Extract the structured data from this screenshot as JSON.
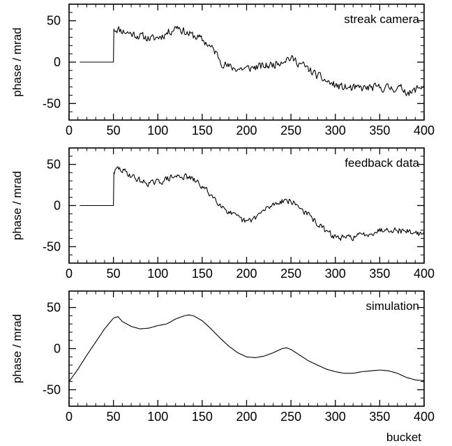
{
  "chart_data": [
    {
      "type": "line",
      "title": "streak camera",
      "xlabel": "",
      "ylabel": "phase / mrad",
      "xlim": [
        0,
        400
      ],
      "ylim": [
        -70,
        70
      ],
      "xticks": [
        0,
        50,
        100,
        150,
        200,
        250,
        300,
        350,
        400
      ],
      "yticks": [
        -50,
        0,
        50
      ],
      "noise": 4.5,
      "seed": 11,
      "series": [
        {
          "x": [
            12,
            50,
            50.5,
            55,
            65,
            75,
            85,
            95,
            105,
            115,
            122,
            128,
            135,
            145,
            155,
            165,
            172,
            180,
            190,
            200,
            210,
            220,
            230,
            240,
            247,
            255,
            265,
            275,
            285,
            295,
            305,
            320,
            340,
            360,
            375,
            385,
            392,
            400
          ],
          "y": [
            0,
            0,
            40,
            40,
            36,
            33,
            30,
            28,
            32,
            38,
            44,
            38,
            34,
            30,
            23,
            12,
            0,
            -6,
            -8,
            -8,
            -6,
            -5,
            -3,
            2,
            5,
            2,
            -5,
            -13,
            -20,
            -26,
            -30,
            -32,
            -31,
            -31,
            -32,
            -38,
            -32,
            -28
          ]
        }
      ]
    },
    {
      "type": "line",
      "title": "feedback data",
      "xlabel": "",
      "ylabel": "phase / mrad",
      "xlim": [
        0,
        400
      ],
      "ylim": [
        -70,
        70
      ],
      "xticks": [
        0,
        50,
        100,
        150,
        200,
        250,
        300,
        350,
        400
      ],
      "yticks": [
        -50,
        0,
        50
      ],
      "noise": 3.5,
      "seed": 29,
      "series": [
        {
          "x": [
            12,
            50,
            50.5,
            55,
            65,
            75,
            85,
            95,
            105,
            115,
            125,
            135,
            145,
            155,
            165,
            175,
            185,
            195,
            200,
            205,
            215,
            225,
            235,
            243,
            250,
            260,
            270,
            280,
            290,
            300,
            310,
            320,
            330,
            340,
            350,
            360,
            370,
            380,
            390,
            400
          ],
          "y": [
            0,
            0,
            40,
            45,
            40,
            33,
            28,
            27,
            30,
            34,
            36,
            34,
            28,
            18,
            8,
            -3,
            -12,
            -18,
            -20,
            -18,
            -10,
            -2,
            4,
            7,
            5,
            -2,
            -12,
            -22,
            -32,
            -38,
            -40,
            -38,
            -36,
            -33,
            -30,
            -28,
            -30,
            -31,
            -33,
            -35
          ]
        }
      ]
    },
    {
      "type": "line",
      "title": "simulation",
      "xlabel": "bucket",
      "ylabel": "phase / mrad",
      "xlim": [
        0,
        400
      ],
      "ylim": [
        -70,
        70
      ],
      "xticks": [
        0,
        50,
        100,
        150,
        200,
        250,
        300,
        350,
        400
      ],
      "yticks": [
        -50,
        0,
        50
      ],
      "noise": 0,
      "seed": 0,
      "series": [
        {
          "x": [
            0,
            10,
            20,
            30,
            40,
            50,
            55,
            60,
            70,
            80,
            90,
            100,
            110,
            120,
            130,
            135,
            140,
            150,
            160,
            170,
            180,
            190,
            200,
            210,
            220,
            230,
            240,
            245,
            250,
            260,
            270,
            280,
            290,
            300,
            310,
            320,
            330,
            340,
            350,
            360,
            370,
            380,
            390,
            400
          ],
          "y": [
            -40,
            -25,
            -8,
            8,
            24,
            37,
            39,
            33,
            27,
            24,
            25,
            28,
            30,
            36,
            40,
            41,
            40,
            34,
            24,
            13,
            3,
            -5,
            -10,
            -11,
            -9,
            -5,
            0,
            1,
            -1,
            -8,
            -15,
            -20,
            -25,
            -28,
            -30,
            -30,
            -28,
            -27,
            -26,
            -27,
            -30,
            -35,
            -38,
            -39
          ]
        }
      ]
    }
  ]
}
